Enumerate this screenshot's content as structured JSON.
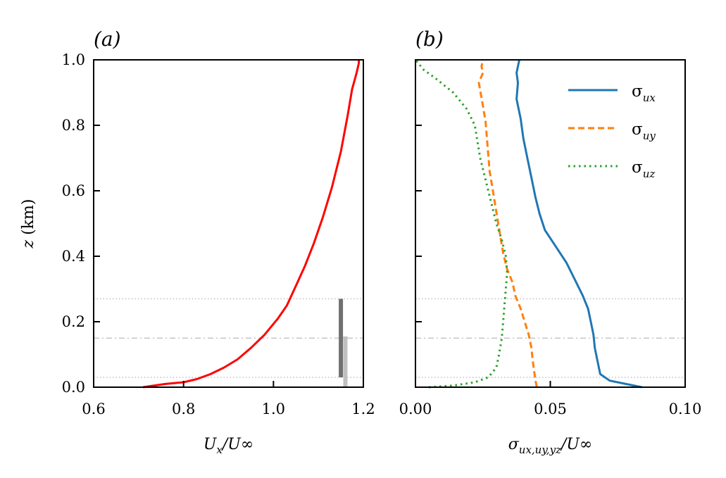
{
  "chart_data": [
    {
      "type": "line",
      "panel_label": "(a)",
      "xlabel": "U_x / U_∞",
      "xlabel_parts": {
        "main": "U",
        "sub": "x",
        "rest": "/U∞"
      },
      "ylabel": "z (km)",
      "ylabel_parts": {
        "var": "z",
        "unit": " (km)"
      },
      "xlim": [
        0.6,
        1.2
      ],
      "ylim": [
        0.0,
        1.0
      ],
      "xticks": [
        "0.6",
        "0.8",
        "1.0",
        "1.2"
      ],
      "xtick_values": [
        0.6,
        0.8,
        1.0,
        1.2
      ],
      "yticks": [
        "0.0",
        "0.2",
        "0.4",
        "0.6",
        "0.8",
        "1.0"
      ],
      "ytick_values": [
        0.0,
        0.2,
        0.4,
        0.6,
        0.8,
        1.0
      ],
      "series": [
        {
          "name": "U_x/U_inf",
          "color": "#ff0000",
          "x": [
            0.71,
            0.76,
            0.8,
            0.83,
            0.86,
            0.89,
            0.92,
            0.95,
            0.98,
            1.01,
            1.03,
            1.05,
            1.07,
            1.09,
            1.11,
            1.13,
            1.15,
            1.165,
            1.175,
            1.185,
            1.19,
            1.19
          ],
          "y": [
            0.0,
            0.01,
            0.015,
            0.025,
            0.04,
            0.06,
            0.085,
            0.12,
            0.16,
            0.21,
            0.25,
            0.31,
            0.37,
            0.44,
            0.52,
            0.61,
            0.72,
            0.83,
            0.91,
            0.96,
            0.99,
            1.0
          ]
        }
      ],
      "reference_lines": [
        {
          "y": 0.27,
          "style": "dotted",
          "color": "#bbbbbb"
        },
        {
          "y": 0.15,
          "style": "dashdot",
          "color": "#bbbbbb"
        },
        {
          "y": 0.03,
          "style": "dotted",
          "color": "#bbbbbb"
        }
      ],
      "marker_bars": [
        {
          "x": 1.15,
          "y0": 0.03,
          "y1": 0.27,
          "color": "#707070"
        },
        {
          "x": 1.16,
          "y0": 0.0,
          "y1": 0.155,
          "color": "#c0c0c0"
        }
      ]
    },
    {
      "type": "line",
      "panel_label": "(b)",
      "xlabel": "σ_{u_x,u_y,y_z} / U_∞",
      "xlabel_parts": {
        "main": "σ",
        "sub": "ux,uy,yz",
        "rest": "/U∞"
      },
      "ylabel": "",
      "xlim": [
        0.0,
        0.1
      ],
      "ylim": [
        0.0,
        1.0
      ],
      "xticks": [
        "0.00",
        "0.05",
        "0.10"
      ],
      "xtick_values": [
        0.0,
        0.05,
        0.1
      ],
      "yticks": [],
      "ytick_values": [
        0.0,
        0.2,
        0.4,
        0.6,
        0.8,
        1.0
      ],
      "legend_position": "top-right",
      "series": [
        {
          "name": "σ_ux",
          "legend_main": "σ",
          "legend_sub": "ux",
          "color": "#1f77b4",
          "style": "solid",
          "x": [
            0.084,
            0.078,
            0.072,
            0.0685,
            0.0675,
            0.0665,
            0.066,
            0.065,
            0.064,
            0.062,
            0.059,
            0.056,
            0.052,
            0.048,
            0.046,
            0.0445,
            0.043,
            0.0415,
            0.04,
            0.039,
            0.0375,
            0.038,
            0.0375,
            0.038,
            0.0385
          ],
          "y": [
            0.0,
            0.01,
            0.02,
            0.04,
            0.08,
            0.12,
            0.16,
            0.2,
            0.24,
            0.28,
            0.33,
            0.38,
            0.43,
            0.48,
            0.53,
            0.58,
            0.64,
            0.7,
            0.76,
            0.82,
            0.88,
            0.93,
            0.96,
            0.98,
            1.0
          ]
        },
        {
          "name": "σ_uy",
          "legend_main": "σ",
          "legend_sub": "uy",
          "color": "#ff7f0e",
          "style": "dashed",
          "x": [
            0.045,
            0.0445,
            0.044,
            0.0435,
            0.043,
            0.042,
            0.0405,
            0.039,
            0.037,
            0.036,
            0.034,
            0.0325,
            0.0315,
            0.0305,
            0.0295,
            0.0285,
            0.0275,
            0.027,
            0.0265,
            0.026,
            0.025,
            0.0235,
            0.025,
            0.0245,
            0.025
          ],
          "y": [
            0.0,
            0.02,
            0.05,
            0.08,
            0.12,
            0.16,
            0.2,
            0.24,
            0.28,
            0.32,
            0.36,
            0.41,
            0.46,
            0.51,
            0.56,
            0.61,
            0.66,
            0.71,
            0.76,
            0.81,
            0.86,
            0.93,
            0.96,
            0.98,
            1.0
          ]
        },
        {
          "name": "σ_uz",
          "legend_main": "σ",
          "legend_sub": "uz",
          "color": "#2ca02c",
          "style": "dotted",
          "x": [
            0.005,
            0.014,
            0.022,
            0.027,
            0.03,
            0.031,
            0.032,
            0.0325,
            0.033,
            0.0335,
            0.034,
            0.0335,
            0.032,
            0.03,
            0.0285,
            0.027,
            0.0255,
            0.024,
            0.023,
            0.022,
            0.019,
            0.014,
            0.008,
            0.003,
            0.0
          ],
          "y": [
            0.0,
            0.005,
            0.015,
            0.03,
            0.06,
            0.1,
            0.15,
            0.2,
            0.25,
            0.3,
            0.35,
            0.4,
            0.45,
            0.5,
            0.55,
            0.6,
            0.65,
            0.7,
            0.75,
            0.8,
            0.85,
            0.9,
            0.94,
            0.97,
            1.0
          ]
        }
      ],
      "reference_lines": [
        {
          "y": 0.27,
          "style": "dotted",
          "color": "#bbbbbb"
        },
        {
          "y": 0.15,
          "style": "dashdot",
          "color": "#bbbbbb"
        },
        {
          "y": 0.03,
          "style": "dotted",
          "color": "#bbbbbb"
        }
      ]
    }
  ]
}
